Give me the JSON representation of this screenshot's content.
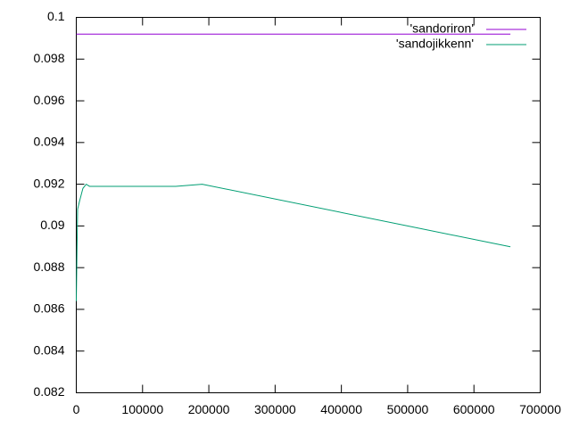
{
  "chart_data": {
    "type": "line",
    "xlim": [
      0,
      700000
    ],
    "xticks": [
      0,
      100000,
      200000,
      300000,
      400000,
      500000,
      600000,
      700000
    ],
    "ylim": [
      0.082,
      0.1
    ],
    "yticks": [
      0.082,
      0.084,
      0.086,
      0.088,
      0.09,
      0.092,
      0.094,
      0.096,
      0.098,
      0.1
    ],
    "legend": "upper right",
    "series": [
      {
        "name": "'sandoriron'",
        "color": "#9400d3",
        "x": [
          0,
          655000
        ],
        "values": [
          0.0992,
          0.0992
        ]
      },
      {
        "name": "'sandojikkenn'",
        "color": "#009e73",
        "x": [
          0,
          1000,
          2000,
          5000,
          10000,
          15000,
          20000,
          150000,
          190000,
          655000
        ],
        "values": [
          0.0864,
          0.0887,
          0.0908,
          0.0912,
          0.0918,
          0.092,
          0.0919,
          0.0919,
          0.092,
          0.089
        ]
      }
    ]
  }
}
